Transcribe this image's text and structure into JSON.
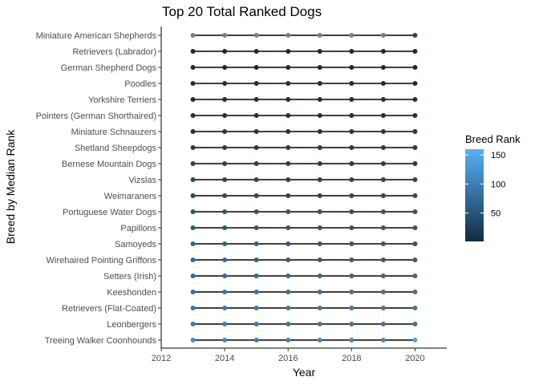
{
  "chart_data": {
    "type": "scatter",
    "title": "Top 20 Total Ranked Dogs",
    "xlabel": "Year",
    "ylabel": "Breed by Median Rank",
    "xlim": [
      2012,
      2021
    ],
    "x_ticks": [
      2012,
      2014,
      2016,
      2018,
      2020
    ],
    "years": [
      2013,
      2014,
      2015,
      2016,
      2017,
      2018,
      2019,
      2020
    ],
    "grid": false,
    "legend": {
      "title": "Breed Rank",
      "position": "right",
      "breaks": [
        150,
        100,
        50
      ],
      "range": [
        1,
        160
      ],
      "low_color": "#132B43",
      "high_color": "#56B1F7",
      "na_color": "#7f7f7f"
    },
    "breeds": [
      {
        "name": "Miniature American Shepherds",
        "ranks": [
          null,
          null,
          null,
          null,
          null,
          null,
          null,
          34
        ]
      },
      {
        "name": "Retrievers (Labrador)",
        "ranks": [
          1,
          1,
          1,
          1,
          1,
          1,
          1,
          1
        ]
      },
      {
        "name": "German Shepherd Dogs",
        "ranks": [
          2,
          2,
          2,
          2,
          2,
          2,
          3,
          3
        ]
      },
      {
        "name": "Poodles",
        "ranks": [
          8,
          7,
          8,
          7,
          7,
          7,
          6,
          5
        ]
      },
      {
        "name": "Yorkshire Terriers",
        "ranks": [
          6,
          6,
          7,
          9,
          9,
          9,
          10,
          12
        ]
      },
      {
        "name": "Pointers (German Shorthaired)",
        "ranks": [
          13,
          12,
          11,
          9,
          9,
          9,
          9,
          9
        ]
      },
      {
        "name": "Miniature Schnauzers",
        "ranks": [
          12,
          15,
          15,
          16,
          17,
          18,
          19,
          19
        ]
      },
      {
        "name": "Shetland Sheepdogs",
        "ranks": [
          20,
          21,
          22,
          23,
          24,
          24,
          24,
          24
        ]
      },
      {
        "name": "Bernese Mountain Dogs",
        "ranks": [
          32,
          32,
          29,
          26,
          25,
          22,
          22,
          20
        ]
      },
      {
        "name": "Vizslas",
        "ranks": [
          37,
          32,
          32,
          31,
          31,
          33,
          33,
          33
        ]
      },
      {
        "name": "Weimaraners",
        "ranks": [
          34,
          35,
          36,
          34,
          34,
          37,
          37,
          38
        ]
      },
      {
        "name": "Portuguese Water Dogs",
        "ranks": [
          51,
          50,
          49,
          51,
          49,
          51,
          51,
          51
        ]
      },
      {
        "name": "Papillons",
        "ranks": [
          57,
          55,
          55,
          55,
          54,
          54,
          53,
          58
        ]
      },
      {
        "name": "Samoyeds",
        "ranks": [
          72,
          67,
          65,
          59,
          58,
          57,
          56,
          53
        ]
      },
      {
        "name": "Wirehaired Pointing Griffons",
        "ranks": [
          75,
          75,
          66,
          62,
          61,
          60,
          59,
          64
        ]
      },
      {
        "name": "Setters (Irish)",
        "ranks": [
          77,
          76,
          77,
          77,
          76,
          76,
          74,
          78
        ]
      },
      {
        "name": "Keeshonden",
        "ranks": [
          86,
          87,
          87,
          86,
          88,
          88,
          90,
          91
        ]
      },
      {
        "name": "Retrievers (Flat-Coated)",
        "ranks": [
          92,
          95,
          93,
          92,
          94,
          95,
          93,
          95
        ]
      },
      {
        "name": "Leonbergers",
        "ranks": [
          98,
          100,
          96,
          91,
          93,
          92,
          90,
          91
        ]
      },
      {
        "name": "Treeing Walker Coonhounds",
        "ranks": [
          118,
          112,
          100,
          108,
          111,
          111,
          114,
          145
        ]
      }
    ]
  }
}
